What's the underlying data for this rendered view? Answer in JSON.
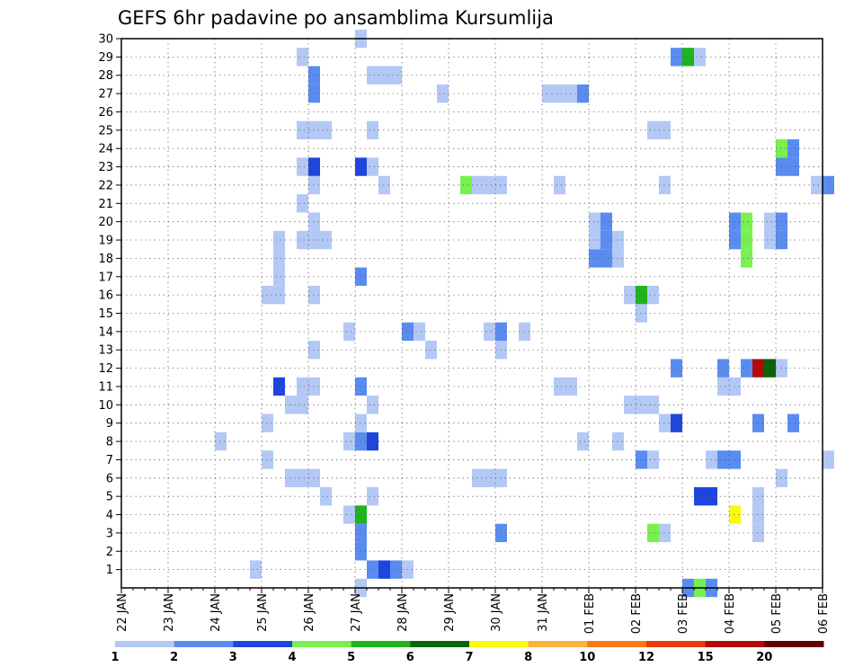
{
  "chart_data": {
    "type": "heatmap",
    "title": "GEFS 6hr padavine po ansamblima Kursumlija",
    "xlabel": "",
    "ylabel": "",
    "x_step_hours": 6,
    "x_ticks": [
      "22 JAN",
      "23 JAN",
      "24 JAN",
      "25 JAN",
      "26 JAN",
      "27 JAN",
      "28 JAN",
      "29 JAN",
      "30 JAN",
      "31 JAN",
      "01 FEB",
      "02 FEB",
      "03 FEB",
      "04 FEB",
      "05 FEB",
      "06 FEB"
    ],
    "y_ticks": [
      "1",
      "2",
      "3",
      "4",
      "5",
      "6",
      "7",
      "8",
      "9",
      "10",
      "11",
      "12",
      "13",
      "14",
      "15",
      "16",
      "17",
      "18",
      "19",
      "20",
      "21",
      "22",
      "23",
      "24",
      "25",
      "26",
      "27",
      "28",
      "29",
      "30"
    ],
    "xlim": [
      "22 JAN 00z",
      "06 FEB 00z"
    ],
    "ylim": [
      0,
      30
    ],
    "grid": true,
    "colorbar": {
      "labels": [
        "1",
        "2",
        "3",
        "4",
        "5",
        "6",
        "7",
        "8",
        "10",
        "12",
        "15",
        "20"
      ],
      "bins": [
        {
          "from": 1,
          "to": 2,
          "color": "#b4c8f5"
        },
        {
          "from": 2,
          "to": 3,
          "color": "#5a8cf0"
        },
        {
          "from": 3,
          "to": 4,
          "color": "#1e46dc"
        },
        {
          "from": 4,
          "to": 5,
          "color": "#78f050"
        },
        {
          "from": 5,
          "to": 6,
          "color": "#1eb41e"
        },
        {
          "from": 6,
          "to": 7,
          "color": "#0a640a"
        },
        {
          "from": 7,
          "to": 8,
          "color": "#fafa0a"
        },
        {
          "from": 8,
          "to": 10,
          "color": "#fab43c"
        },
        {
          "from": 10,
          "to": 12,
          "color": "#fa7814"
        },
        {
          "from": 12,
          "to": 15,
          "color": "#e63c0a"
        },
        {
          "from": 15,
          "to": 20,
          "color": "#b40a0a"
        },
        {
          "from": 20,
          "to": 25,
          "color": "#640000"
        }
      ]
    },
    "cells": [
      {
        "member": 0,
        "time": "27 JAN 00z",
        "precip": 1.5
      },
      {
        "member": 0,
        "time": "03 FEB 00z",
        "precip": 2.5
      },
      {
        "member": 0,
        "time": "03 FEB 06z",
        "precip": 4.5
      },
      {
        "member": 0,
        "time": "03 FEB 12z",
        "precip": 2.5
      },
      {
        "member": 1,
        "time": "24 JAN 18z",
        "precip": 1.5
      },
      {
        "member": 1,
        "time": "27 JAN 06z",
        "precip": 2.5
      },
      {
        "member": 1,
        "time": "27 JAN 12z",
        "precip": 3.5
      },
      {
        "member": 1,
        "time": "27 JAN 18z",
        "precip": 2.5
      },
      {
        "member": 1,
        "time": "28 JAN 00z",
        "precip": 1.5
      },
      {
        "member": 2,
        "time": "27 JAN 00z",
        "precip": 2.5
      },
      {
        "member": 3,
        "time": "27 JAN 00z",
        "precip": 2.5
      },
      {
        "member": 3,
        "time": "30 JAN 00z",
        "precip": 2.5
      },
      {
        "member": 3,
        "time": "02 FEB 06z",
        "precip": 4.5
      },
      {
        "member": 3,
        "time": "02 FEB 12z",
        "precip": 1.5
      },
      {
        "member": 3,
        "time": "04 FEB 12z",
        "precip": 1.5
      },
      {
        "member": 4,
        "time": "26 JAN 18z",
        "precip": 1.5
      },
      {
        "member": 4,
        "time": "27 JAN 00z",
        "precip": 5.5
      },
      {
        "member": 4,
        "time": "04 FEB 00z",
        "precip": 7.5
      },
      {
        "member": 4,
        "time": "04 FEB 12z",
        "precip": 1.5
      },
      {
        "member": 5,
        "time": "26 JAN 06z",
        "precip": 1.5
      },
      {
        "member": 5,
        "time": "27 JAN 06z",
        "precip": 1.5
      },
      {
        "member": 5,
        "time": "03 FEB 06z",
        "precip": 3.5
      },
      {
        "member": 5,
        "time": "03 FEB 12z",
        "precip": 3.5
      },
      {
        "member": 5,
        "time": "04 FEB 12z",
        "precip": 1.5
      },
      {
        "member": 6,
        "time": "25 JAN 12z",
        "precip": 1.5
      },
      {
        "member": 6,
        "time": "25 JAN 18z",
        "precip": 1.5
      },
      {
        "member": 6,
        "time": "26 JAN 00z",
        "precip": 1.5
      },
      {
        "member": 6,
        "time": "29 JAN 12z",
        "precip": 1.5
      },
      {
        "member": 6,
        "time": "29 JAN 18z",
        "precip": 1.5
      },
      {
        "member": 6,
        "time": "30 JAN 00z",
        "precip": 1.5
      },
      {
        "member": 6,
        "time": "05 FEB 00z",
        "precip": 1.5
      },
      {
        "member": 7,
        "time": "25 JAN 00z",
        "precip": 1.5
      },
      {
        "member": 7,
        "time": "02 FEB 00z",
        "precip": 2.5
      },
      {
        "member": 7,
        "time": "02 FEB 06z",
        "precip": 1.5
      },
      {
        "member": 7,
        "time": "03 FEB 12z",
        "precip": 1.5
      },
      {
        "member": 7,
        "time": "03 FEB 18z",
        "precip": 2.5
      },
      {
        "member": 7,
        "time": "04 FEB 00z",
        "precip": 2.5
      },
      {
        "member": 7,
        "time": "06 FEB 00z",
        "precip": 1.5
      },
      {
        "member": 8,
        "time": "24 JAN 00z",
        "precip": 1.5
      },
      {
        "member": 8,
        "time": "26 JAN 18z",
        "precip": 1.5
      },
      {
        "member": 8,
        "time": "27 JAN 00z",
        "precip": 2.5
      },
      {
        "member": 8,
        "time": "27 JAN 06z",
        "precip": 3.5
      },
      {
        "member": 8,
        "time": "31 JAN 18z",
        "precip": 1.5
      },
      {
        "member": 8,
        "time": "01 FEB 12z",
        "precip": 1.5
      },
      {
        "member": 9,
        "time": "25 JAN 00z",
        "precip": 1.5
      },
      {
        "member": 9,
        "time": "27 JAN 00z",
        "precip": 1.5
      },
      {
        "member": 9,
        "time": "02 FEB 12z",
        "precip": 1.5
      },
      {
        "member": 9,
        "time": "02 FEB 18z",
        "precip": 3.5
      },
      {
        "member": 9,
        "time": "04 FEB 12z",
        "precip": 2.5
      },
      {
        "member": 9,
        "time": "05 FEB 06z",
        "precip": 2.5
      },
      {
        "member": 10,
        "time": "25 JAN 12z",
        "precip": 1.5
      },
      {
        "member": 10,
        "time": "25 JAN 18z",
        "precip": 1.5
      },
      {
        "member": 10,
        "time": "27 JAN 06z",
        "precip": 1.5
      },
      {
        "member": 10,
        "time": "01 FEB 18z",
        "precip": 1.5
      },
      {
        "member": 10,
        "time": "02 FEB 00z",
        "precip": 1.5
      },
      {
        "member": 10,
        "time": "02 FEB 06z",
        "precip": 1.5
      },
      {
        "member": 11,
        "time": "25 JAN 18z",
        "precip": 1.5
      },
      {
        "member": 11,
        "time": "26 JAN 00z",
        "precip": 1.5
      },
      {
        "member": 11,
        "time": "25 JAN 06z",
        "precip": 3.5
      },
      {
        "member": 11,
        "time": "27 JAN 00z",
        "precip": 2.5
      },
      {
        "member": 11,
        "time": "31 JAN 06z",
        "precip": 1.5
      },
      {
        "member": 11,
        "time": "31 JAN 12z",
        "precip": 1.5
      },
      {
        "member": 11,
        "time": "03 FEB 18z",
        "precip": 1.5
      },
      {
        "member": 11,
        "time": "04 FEB 00z",
        "precip": 1.5
      },
      {
        "member": 12,
        "time": "02 FEB 18z",
        "precip": 2.5
      },
      {
        "member": 12,
        "time": "03 FEB 18z",
        "precip": 2.5
      },
      {
        "member": 12,
        "time": "04 FEB 06z",
        "precip": 2.5
      },
      {
        "member": 12,
        "time": "04 FEB 12z",
        "precip": 17.5
      },
      {
        "member": 12,
        "time": "04 FEB 18z",
        "precip": 6.5
      },
      {
        "member": 12,
        "time": "05 FEB 00z",
        "precip": 1.5
      },
      {
        "member": 13,
        "time": "26 JAN 00z",
        "precip": 1.5
      },
      {
        "member": 13,
        "time": "28 JAN 12z",
        "precip": 1.5
      },
      {
        "member": 13,
        "time": "30 JAN 00z",
        "precip": 1.5
      },
      {
        "member": 14,
        "time": "26 JAN 18z",
        "precip": 1.5
      },
      {
        "member": 14,
        "time": "28 JAN 00z",
        "precip": 2.5
      },
      {
        "member": 14,
        "time": "28 JAN 06z",
        "precip": 1.5
      },
      {
        "member": 14,
        "time": "29 JAN 18z",
        "precip": 1.5
      },
      {
        "member": 14,
        "time": "30 JAN 00z",
        "precip": 2.5
      },
      {
        "member": 14,
        "time": "30 JAN 12z",
        "precip": 1.5
      },
      {
        "member": 15,
        "time": "02 FEB 00z",
        "precip": 1.5
      },
      {
        "member": 16,
        "time": "25 JAN 00z",
        "precip": 1.5
      },
      {
        "member": 16,
        "time": "25 JAN 06z",
        "precip": 1.5
      },
      {
        "member": 16,
        "time": "26 JAN 00z",
        "precip": 1.5
      },
      {
        "member": 16,
        "time": "01 FEB 18z",
        "precip": 1.5
      },
      {
        "member": 16,
        "time": "02 FEB 00z",
        "precip": 5.5
      },
      {
        "member": 16,
        "time": "02 FEB 06z",
        "precip": 1.5
      },
      {
        "member": 17,
        "time": "25 JAN 06z",
        "precip": 1.5
      },
      {
        "member": 17,
        "time": "27 JAN 00z",
        "precip": 2.5
      },
      {
        "member": 18,
        "time": "25 JAN 06z",
        "precip": 1.5
      },
      {
        "member": 18,
        "time": "01 FEB 00z",
        "precip": 2.5
      },
      {
        "member": 18,
        "time": "01 FEB 06z",
        "precip": 2.5
      },
      {
        "member": 18,
        "time": "01 FEB 12z",
        "precip": 1.5
      },
      {
        "member": 18,
        "time": "04 FEB 06z",
        "precip": 4.5
      },
      {
        "member": 19,
        "time": "25 JAN 06z",
        "precip": 1.5
      },
      {
        "member": 19,
        "time": "25 JAN 18z",
        "precip": 1.5
      },
      {
        "member": 19,
        "time": "26 JAN 00z",
        "precip": 1.5
      },
      {
        "member": 19,
        "time": "26 JAN 06z",
        "precip": 1.5
      },
      {
        "member": 19,
        "time": "01 FEB 00z",
        "precip": 1.5
      },
      {
        "member": 19,
        "time": "01 FEB 06z",
        "precip": 2.5
      },
      {
        "member": 19,
        "time": "01 FEB 12z",
        "precip": 1.5
      },
      {
        "member": 19,
        "time": "04 FEB 00z",
        "precip": 2.5
      },
      {
        "member": 19,
        "time": "04 FEB 06z",
        "precip": 4.5
      },
      {
        "member": 19,
        "time": "04 FEB 18z",
        "precip": 1.5
      },
      {
        "member": 19,
        "time": "05 FEB 00z",
        "precip": 2.5
      },
      {
        "member": 20,
        "time": "26 JAN 00z",
        "precip": 1.5
      },
      {
        "member": 20,
        "time": "01 FEB 00z",
        "precip": 1.5
      },
      {
        "member": 20,
        "time": "01 FEB 06z",
        "precip": 2.5
      },
      {
        "member": 20,
        "time": "04 FEB 00z",
        "precip": 2.5
      },
      {
        "member": 20,
        "time": "04 FEB 06z",
        "precip": 4.5
      },
      {
        "member": 20,
        "time": "04 FEB 18z",
        "precip": 1.5
      },
      {
        "member": 20,
        "time": "05 FEB 00z",
        "precip": 2.5
      },
      {
        "member": 21,
        "time": "25 JAN 18z",
        "precip": 1.5
      },
      {
        "member": 22,
        "time": "26 JAN 00z",
        "precip": 1.5
      },
      {
        "member": 22,
        "time": "27 JAN 12z",
        "precip": 1.5
      },
      {
        "member": 22,
        "time": "29 JAN 06z",
        "precip": 4.5
      },
      {
        "member": 22,
        "time": "29 JAN 12z",
        "precip": 1.5
      },
      {
        "member": 22,
        "time": "29 JAN 18z",
        "precip": 1.5
      },
      {
        "member": 22,
        "time": "30 JAN 00z",
        "precip": 1.5
      },
      {
        "member": 22,
        "time": "31 JAN 06z",
        "precip": 1.5
      },
      {
        "member": 22,
        "time": "02 FEB 12z",
        "precip": 1.5
      },
      {
        "member": 22,
        "time": "05 FEB 18z",
        "precip": 1.5
      },
      {
        "member": 22,
        "time": "06 FEB 00z",
        "precip": 2.5
      },
      {
        "member": 23,
        "time": "25 JAN 18z",
        "precip": 1.5
      },
      {
        "member": 23,
        "time": "26 JAN 00z",
        "precip": 3.5
      },
      {
        "member": 23,
        "time": "27 JAN 00z",
        "precip": 3.5
      },
      {
        "member": 23,
        "time": "27 JAN 06z",
        "precip": 1.5
      },
      {
        "member": 23,
        "time": "05 FEB 00z",
        "precip": 2.5
      },
      {
        "member": 23,
        "time": "05 FEB 06z",
        "precip": 2.5
      },
      {
        "member": 24,
        "time": "05 FEB 00z",
        "precip": 4.5
      },
      {
        "member": 24,
        "time": "05 FEB 06z",
        "precip": 2.5
      },
      {
        "member": 25,
        "time": "25 JAN 18z",
        "precip": 1.5
      },
      {
        "member": 25,
        "time": "26 JAN 00z",
        "precip": 1.5
      },
      {
        "member": 25,
        "time": "26 JAN 06z",
        "precip": 1.5
      },
      {
        "member": 25,
        "time": "27 JAN 06z",
        "precip": 1.5
      },
      {
        "member": 25,
        "time": "02 FEB 06z",
        "precip": 1.5
      },
      {
        "member": 25,
        "time": "02 FEB 12z",
        "precip": 1.5
      },
      {
        "member": 27,
        "time": "26 JAN 00z",
        "precip": 2.5
      },
      {
        "member": 27,
        "time": "28 JAN 18z",
        "precip": 1.5
      },
      {
        "member": 27,
        "time": "31 JAN 00z",
        "precip": 1.5
      },
      {
        "member": 27,
        "time": "31 JAN 06z",
        "precip": 1.5
      },
      {
        "member": 27,
        "time": "31 JAN 12z",
        "precip": 1.5
      },
      {
        "member": 27,
        "time": "31 JAN 18z",
        "precip": 2.5
      },
      {
        "member": 28,
        "time": "26 JAN 00z",
        "precip": 2.5
      },
      {
        "member": 28,
        "time": "27 JAN 06z",
        "precip": 1.5
      },
      {
        "member": 28,
        "time": "27 JAN 12z",
        "precip": 1.5
      },
      {
        "member": 28,
        "time": "27 JAN 18z",
        "precip": 1.5
      },
      {
        "member": 29,
        "time": "25 JAN 18z",
        "precip": 1.5
      },
      {
        "member": 29,
        "time": "02 FEB 18z",
        "precip": 2.5
      },
      {
        "member": 29,
        "time": "03 FEB 00z",
        "precip": 5.5
      },
      {
        "member": 29,
        "time": "03 FEB 06z",
        "precip": 1.5
      },
      {
        "member": 30,
        "time": "27 JAN 00z",
        "precip": 1.5
      }
    ]
  }
}
